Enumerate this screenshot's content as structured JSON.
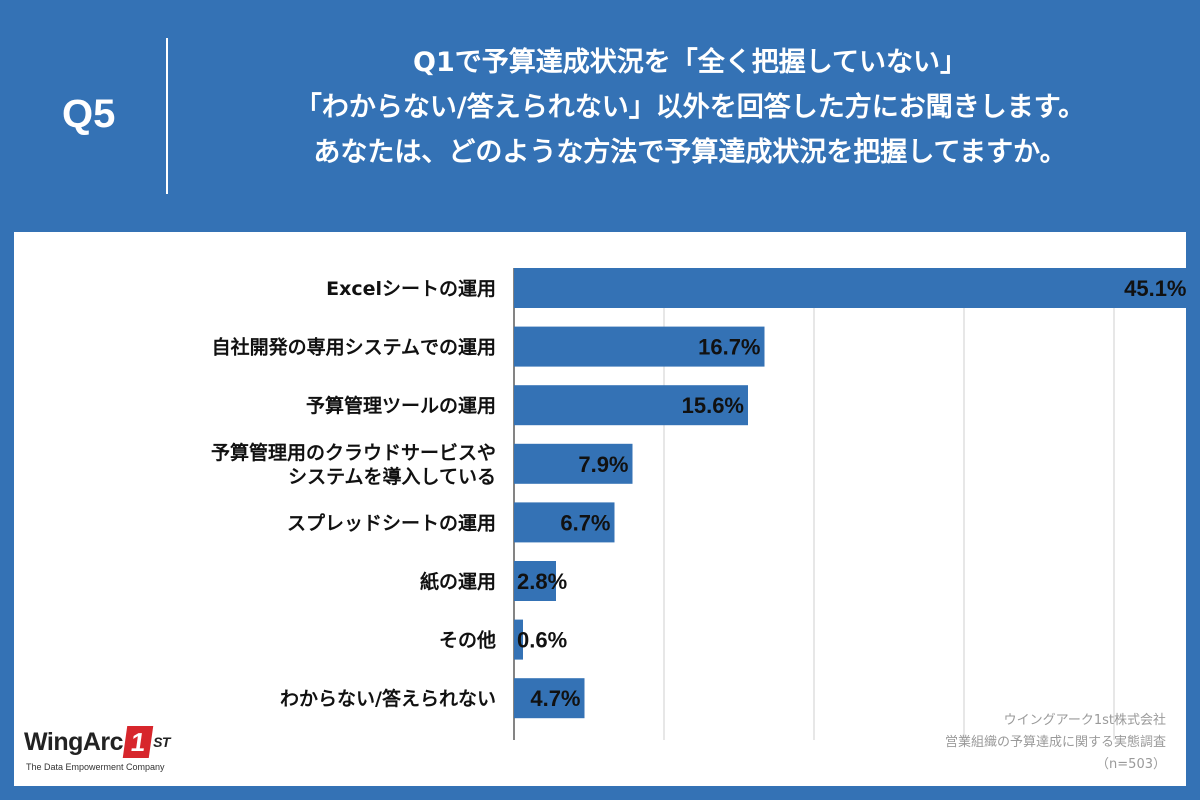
{
  "header": {
    "q_label": "Q5",
    "question_lines": [
      "Q1で予算達成状況を「全く把握していない」",
      "「わからない/答えられない」以外を回答した方にお聞きします。",
      "あなたは、どのような方法で予算達成状況を把握してますか。"
    ]
  },
  "chart_data": {
    "type": "bar",
    "orientation": "horizontal",
    "categories": [
      [
        "Excelシートの運用"
      ],
      [
        "自社開発の専用システムでの運用"
      ],
      [
        "予算管理ツールの運用"
      ],
      [
        "予算管理用のクラウドサービスや",
        "システムを導入している"
      ],
      [
        "スプレッドシートの運用"
      ],
      [
        "紙の運用"
      ],
      [
        "その他"
      ],
      [
        "わからない/答えられない"
      ]
    ],
    "values": [
      45.1,
      16.7,
      15.6,
      7.9,
      6.7,
      2.8,
      0.6,
      4.7
    ],
    "value_labels": [
      "45.1%",
      "16.7%",
      "15.6%",
      "7.9%",
      "6.7%",
      "2.8%",
      "0.6%",
      "4.7%"
    ],
    "xlim": [
      0,
      50
    ],
    "grid": true,
    "bar_color": "#3472b5"
  },
  "logo": {
    "brand": "WingArc",
    "mark": "1",
    "suffix": "ST",
    "tagline": "The Data Empowerment Company"
  },
  "source": {
    "company": "ウイングアーク1st株式会社",
    "survey": "営業組織の予算達成に関する実態調査",
    "sample": "（n=503）"
  }
}
